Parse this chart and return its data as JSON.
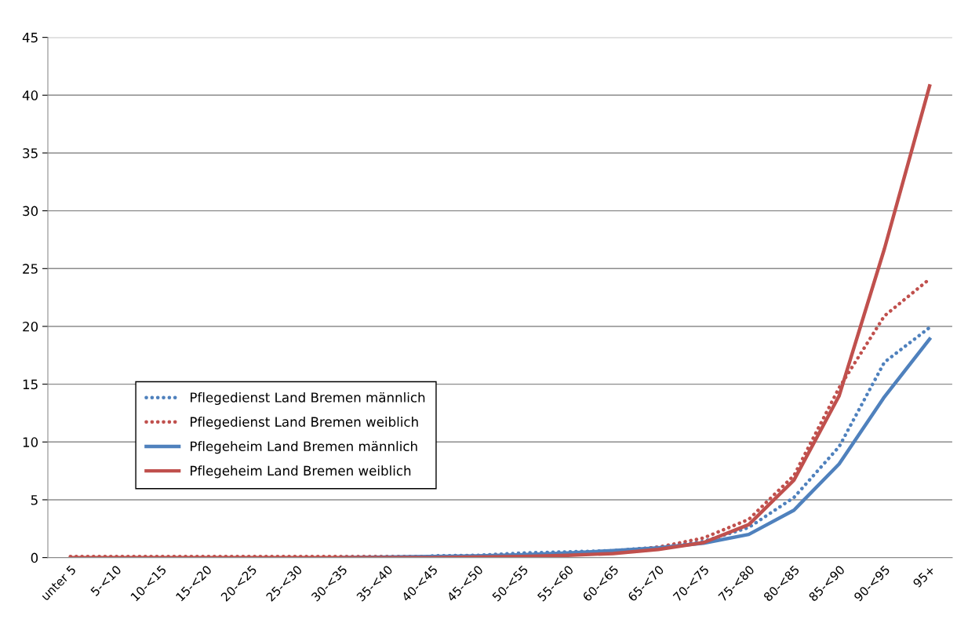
{
  "chart_data": {
    "type": "line",
    "categories": [
      "unter 5",
      "5-<10",
      "10-<15",
      "15-<20",
      "20-<25",
      "25-<30",
      "30-<35",
      "35-<40",
      "40-<45",
      "45-<50",
      "50-<55",
      "55-<60",
      "60-<65",
      "65-<70",
      "70-<75",
      "75-<80",
      "80-<85",
      "85-<90",
      "90-<95",
      "95+"
    ],
    "series": [
      {
        "name": "Pflegedienst Land Bremen männlich",
        "color": "#4f81bd",
        "line_style": "dotted",
        "values": [
          null,
          null,
          null,
          null,
          null,
          null,
          null,
          null,
          0.15,
          0.2,
          0.4,
          0.5,
          0.6,
          0.9,
          1.4,
          2.6,
          5.2,
          9.6,
          16.9,
          19.9
        ]
      },
      {
        "name": "Pflegedienst Land Bremen weiblich",
        "color": "#c0504d",
        "line_style": "dotted",
        "values": [
          0.1,
          0.1,
          0.1,
          0.1,
          0.1,
          0.1,
          0.1,
          0.1,
          0.1,
          0.15,
          0.25,
          0.35,
          0.5,
          0.9,
          1.7,
          3.3,
          7.1,
          14.7,
          20.9,
          24.1
        ]
      },
      {
        "name": "Pflegeheim Land Bremen männlich",
        "color": "#4f81bd",
        "line_style": "solid",
        "values": [
          null,
          null,
          null,
          null,
          null,
          null,
          0.0,
          0.05,
          0.1,
          0.15,
          0.25,
          0.4,
          0.6,
          0.85,
          1.25,
          2.0,
          4.1,
          8.1,
          13.9,
          18.9
        ]
      },
      {
        "name": "Pflegeheim Land Bremen weiblich",
        "color": "#c0504d",
        "line_style": "solid",
        "values": [
          0.0,
          0.0,
          0.0,
          0.0,
          0.0,
          0.0,
          0.0,
          0.0,
          0.0,
          0.05,
          0.1,
          0.2,
          0.35,
          0.7,
          1.3,
          2.85,
          6.7,
          14.0,
          26.7,
          40.8
        ]
      }
    ],
    "ylim": [
      0,
      45
    ],
    "yticks": [
      0,
      5,
      10,
      15,
      20,
      25,
      30,
      35,
      40,
      45
    ],
    "grid": "y",
    "legend": "bottom left",
    "marker": "none"
  }
}
